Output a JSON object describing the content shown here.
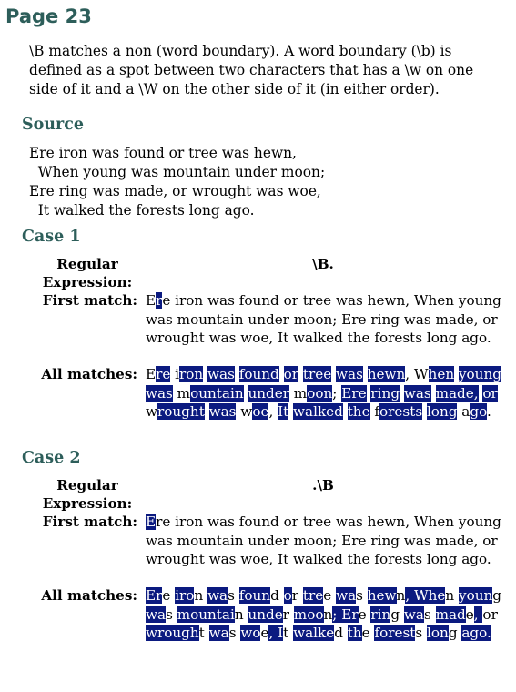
{
  "page_title": "Page 23",
  "description": "\\B matches a non (word boundary). A word boundary (\\b) is defined as a spot between two characters that has a \\w on one side of it and a \\W on the other side of it (in either order).",
  "source": {
    "heading": "Source",
    "lines": [
      "Ere iron was found or tree was hewn,",
      "  When young was mountain under moon;",
      "Ere ring was made, or wrought was woe,",
      "  It walked the forests long ago."
    ]
  },
  "labels": {
    "regex": "Regular Expression:",
    "first": "First match:",
    "all": "All matches:"
  },
  "highlight_color": "#0b1a80",
  "heading_color": "#2d5e5a",
  "cases": [
    {
      "heading": "Case 1",
      "regex": "\\B.",
      "first_match": [
        {
          "t": "E"
        },
        {
          "t": "r",
          "m": true
        },
        {
          "t": "e iron was found or tree was hewn, When young was mountain under moon; Ere ring was made, or wrought was woe, It walked the forests long ago."
        }
      ],
      "all_matches": [
        {
          "t": "E"
        },
        {
          "t": "re",
          "m": true
        },
        {
          "t": " i"
        },
        {
          "t": "ron",
          "m": true
        },
        {
          "t": " "
        },
        {
          "t": "was",
          "m": true
        },
        {
          "t": " "
        },
        {
          "t": "found",
          "m": true
        },
        {
          "t": " "
        },
        {
          "t": "or",
          "m": true
        },
        {
          "t": " "
        },
        {
          "t": "tree",
          "m": true
        },
        {
          "t": " "
        },
        {
          "t": "was",
          "m": true
        },
        {
          "t": " "
        },
        {
          "t": "hewn",
          "m": true
        },
        {
          "t": ", W"
        },
        {
          "t": "hen",
          "m": true
        },
        {
          "t": " "
        },
        {
          "t": "young",
          "m": true
        },
        {
          "t": " "
        },
        {
          "t": "was",
          "m": true
        },
        {
          "t": " m"
        },
        {
          "t": "ountain",
          "m": true
        },
        {
          "t": " "
        },
        {
          "t": "under",
          "m": true
        },
        {
          "t": " m"
        },
        {
          "t": "oon",
          "m": true
        },
        {
          "t": "; "
        },
        {
          "t": "Ere",
          "m": true
        },
        {
          "t": " "
        },
        {
          "t": "ring",
          "m": true
        },
        {
          "t": " "
        },
        {
          "t": "was",
          "m": true
        },
        {
          "t": " "
        },
        {
          "t": "made,",
          "m": true
        },
        {
          "t": " "
        },
        {
          "t": "or",
          "m": true
        },
        {
          "t": " w"
        },
        {
          "t": "rought",
          "m": true
        },
        {
          "t": " "
        },
        {
          "t": "was",
          "m": true
        },
        {
          "t": " w"
        },
        {
          "t": "oe",
          "m": true
        },
        {
          "t": ", "
        },
        {
          "t": "It",
          "m": true
        },
        {
          "t": " "
        },
        {
          "t": "walked",
          "m": true
        },
        {
          "t": " "
        },
        {
          "t": "the",
          "m": true
        },
        {
          "t": " f"
        },
        {
          "t": "orests",
          "m": true
        },
        {
          "t": " "
        },
        {
          "t": "long",
          "m": true
        },
        {
          "t": " a"
        },
        {
          "t": "go",
          "m": true
        },
        {
          "t": "."
        }
      ]
    },
    {
      "heading": "Case 2",
      "regex": ".\\B",
      "first_match": [
        {
          "t": "E",
          "m": true
        },
        {
          "t": "re iron was found or tree was hewn, When young was mountain under moon; Ere ring was made, or wrought was woe, It walked the forests long ago."
        }
      ],
      "all_matches": [
        {
          "t": "Er",
          "m": true
        },
        {
          "t": "e "
        },
        {
          "t": "iro",
          "m": true
        },
        {
          "t": "n "
        },
        {
          "t": "wa",
          "m": true
        },
        {
          "t": "s "
        },
        {
          "t": "foun",
          "m": true
        },
        {
          "t": "d "
        },
        {
          "t": "o",
          "m": true
        },
        {
          "t": "r "
        },
        {
          "t": "tre",
          "m": true
        },
        {
          "t": "e "
        },
        {
          "t": "wa",
          "m": true
        },
        {
          "t": "s "
        },
        {
          "t": "hew",
          "m": true
        },
        {
          "t": "n"
        },
        {
          "t": ", Whe",
          "m": true
        },
        {
          "t": "n "
        },
        {
          "t": "youn",
          "m": true
        },
        {
          "t": "g "
        },
        {
          "t": "wa",
          "m": true
        },
        {
          "t": "s "
        },
        {
          "t": "mountai",
          "m": true
        },
        {
          "t": "n "
        },
        {
          "t": "unde",
          "m": true
        },
        {
          "t": "r "
        },
        {
          "t": "moo",
          "m": true
        },
        {
          "t": "n"
        },
        {
          "t": "; Er",
          "m": true
        },
        {
          "t": "e "
        },
        {
          "t": "rin",
          "m": true
        },
        {
          "t": "g "
        },
        {
          "t": "wa",
          "m": true
        },
        {
          "t": "s "
        },
        {
          "t": "mad",
          "m": true
        },
        {
          "t": "e"
        },
        {
          "t": ", ",
          "m": true
        },
        {
          "t": "or "
        },
        {
          "t": "wrough",
          "m": true
        },
        {
          "t": "t "
        },
        {
          "t": "wa",
          "m": true
        },
        {
          "t": "s "
        },
        {
          "t": "wo",
          "m": true
        },
        {
          "t": "e"
        },
        {
          "t": ", I",
          "m": true
        },
        {
          "t": "t "
        },
        {
          "t": "walke",
          "m": true
        },
        {
          "t": "d "
        },
        {
          "t": "th",
          "m": true
        },
        {
          "t": "e "
        },
        {
          "t": "forest",
          "m": true
        },
        {
          "t": "s "
        },
        {
          "t": "lon",
          "m": true
        },
        {
          "t": "g "
        },
        {
          "t": "ago.",
          "m": true
        }
      ]
    }
  ]
}
